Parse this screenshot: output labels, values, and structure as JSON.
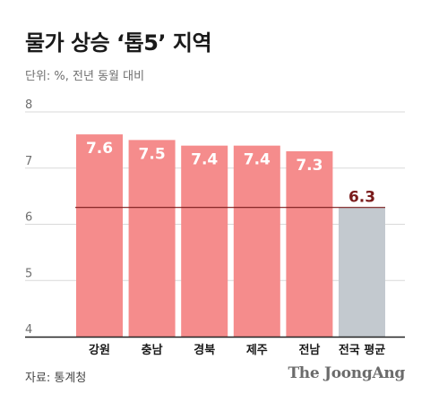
{
  "chart_data": {
    "type": "bar",
    "title": "물가 상승 ‘톱5’ 지역",
    "subtitle": "단위: %, 전년 동월 대비",
    "categories": [
      "강원",
      "충남",
      "경북",
      "제주",
      "전남",
      "전국 평균"
    ],
    "values": [
      7.6,
      7.5,
      7.4,
      7.4,
      7.3,
      6.3
    ],
    "value_labels": [
      "7.6",
      "7.5",
      "7.4",
      "7.4",
      "7.3",
      "6.3"
    ],
    "ylim": [
      4,
      8
    ],
    "yticks": [
      4,
      5,
      6,
      7,
      8
    ],
    "ytick_labels": [
      "4",
      "5",
      "6",
      "7",
      "8"
    ],
    "reference_line": 6.3,
    "grid": true,
    "colors": {
      "region_bar": "#f58c8c",
      "average_bar": "#c3c9cf",
      "reference_line": "#7a1b1b",
      "average_label": "#7a1b1b",
      "bar_label": "#ffffff",
      "grid": "#d9d9d9",
      "axis": "#222222"
    },
    "highlight_index": 5,
    "source": "자료: 통계청",
    "brand": "The JoongAng"
  }
}
